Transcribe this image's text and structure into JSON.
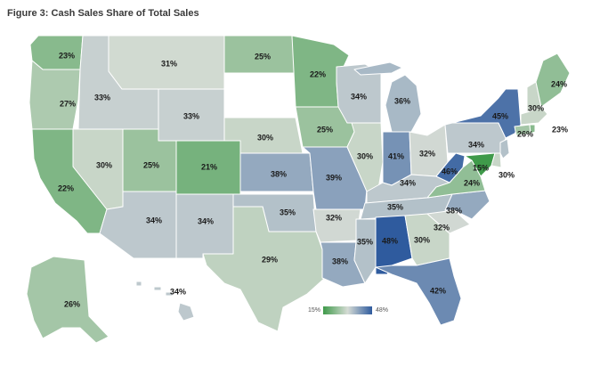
{
  "title": "Figure 3: Cash Sales Share of Total Sales",
  "legend": {
    "min_label": "15%",
    "max_label": "48%",
    "min_value": 15,
    "max_value": 48
  },
  "colors": {
    "low": "#3f9a4a",
    "mid": "#d6dcd5",
    "high": "#2f5b9e",
    "no_data": "#ffffff"
  },
  "states": [
    {
      "id": "WA",
      "value": 23,
      "label": "23%"
    },
    {
      "id": "OR",
      "value": 27,
      "label": "27%"
    },
    {
      "id": "CA",
      "value": 22,
      "label": "22%"
    },
    {
      "id": "NV",
      "value": 30,
      "label": "30%"
    },
    {
      "id": "ID",
      "value": 33,
      "label": "33%"
    },
    {
      "id": "MT",
      "value": 31,
      "label": "31%"
    },
    {
      "id": "WY",
      "value": 33,
      "label": "33%"
    },
    {
      "id": "UT",
      "value": 25,
      "label": "25%"
    },
    {
      "id": "AZ",
      "value": 34,
      "label": "34%"
    },
    {
      "id": "CO",
      "value": 21,
      "label": "21%"
    },
    {
      "id": "NM",
      "value": 34,
      "label": "34%"
    },
    {
      "id": "ND",
      "value": 25,
      "label": "25%"
    },
    {
      "id": "SD",
      "value": null,
      "label": ""
    },
    {
      "id": "NE",
      "value": 30,
      "label": "30%"
    },
    {
      "id": "KS",
      "value": 38,
      "label": "38%"
    },
    {
      "id": "OK",
      "value": 35,
      "label": "35%"
    },
    {
      "id": "TX",
      "value": 29,
      "label": "29%"
    },
    {
      "id": "MN",
      "value": 22,
      "label": "22%"
    },
    {
      "id": "IA",
      "value": 25,
      "label": "25%"
    },
    {
      "id": "MO",
      "value": 39,
      "label": "39%"
    },
    {
      "id": "AR",
      "value": 32,
      "label": "32%"
    },
    {
      "id": "LA",
      "value": 38,
      "label": "38%"
    },
    {
      "id": "WI",
      "value": 34,
      "label": "34%"
    },
    {
      "id": "IL",
      "value": 30,
      "label": "30%"
    },
    {
      "id": "MI",
      "value": 36,
      "label": "36%"
    },
    {
      "id": "IN",
      "value": 41,
      "label": "41%"
    },
    {
      "id": "OH",
      "value": 32,
      "label": "32%"
    },
    {
      "id": "KY",
      "value": 34,
      "label": "34%"
    },
    {
      "id": "TN",
      "value": 35,
      "label": "35%"
    },
    {
      "id": "MS",
      "value": 35,
      "label": "35%"
    },
    {
      "id": "AL",
      "value": 48,
      "label": "48%"
    },
    {
      "id": "GA",
      "value": 30,
      "label": "30%"
    },
    {
      "id": "FL",
      "value": 42,
      "label": "42%"
    },
    {
      "id": "SC",
      "value": 32,
      "label": "32%"
    },
    {
      "id": "NC",
      "value": 38,
      "label": "38%"
    },
    {
      "id": "VA",
      "value": 24,
      "label": "24%"
    },
    {
      "id": "WV",
      "value": 46,
      "label": "46%"
    },
    {
      "id": "PA",
      "value": 34,
      "label": "34%"
    },
    {
      "id": "NY",
      "value": 45,
      "label": "45%"
    },
    {
      "id": "MD",
      "value": 15,
      "label": "15%"
    },
    {
      "id": "DE",
      "value": 30,
      "label": "30%"
    },
    {
      "id": "NJ",
      "value": 35,
      "label": ""
    },
    {
      "id": "CT",
      "value": 26,
      "label": "26%"
    },
    {
      "id": "RI",
      "value": 23,
      "label": "23%"
    },
    {
      "id": "MA",
      "value": 30,
      "label": "30%"
    },
    {
      "id": "VT",
      "value": null,
      "label": ""
    },
    {
      "id": "NH",
      "value": 30,
      "label": ""
    },
    {
      "id": "ME",
      "value": 24,
      "label": "24%"
    },
    {
      "id": "AK",
      "value": 26,
      "label": "26%"
    },
    {
      "id": "HI",
      "value": 34,
      "label": "34%"
    }
  ]
}
